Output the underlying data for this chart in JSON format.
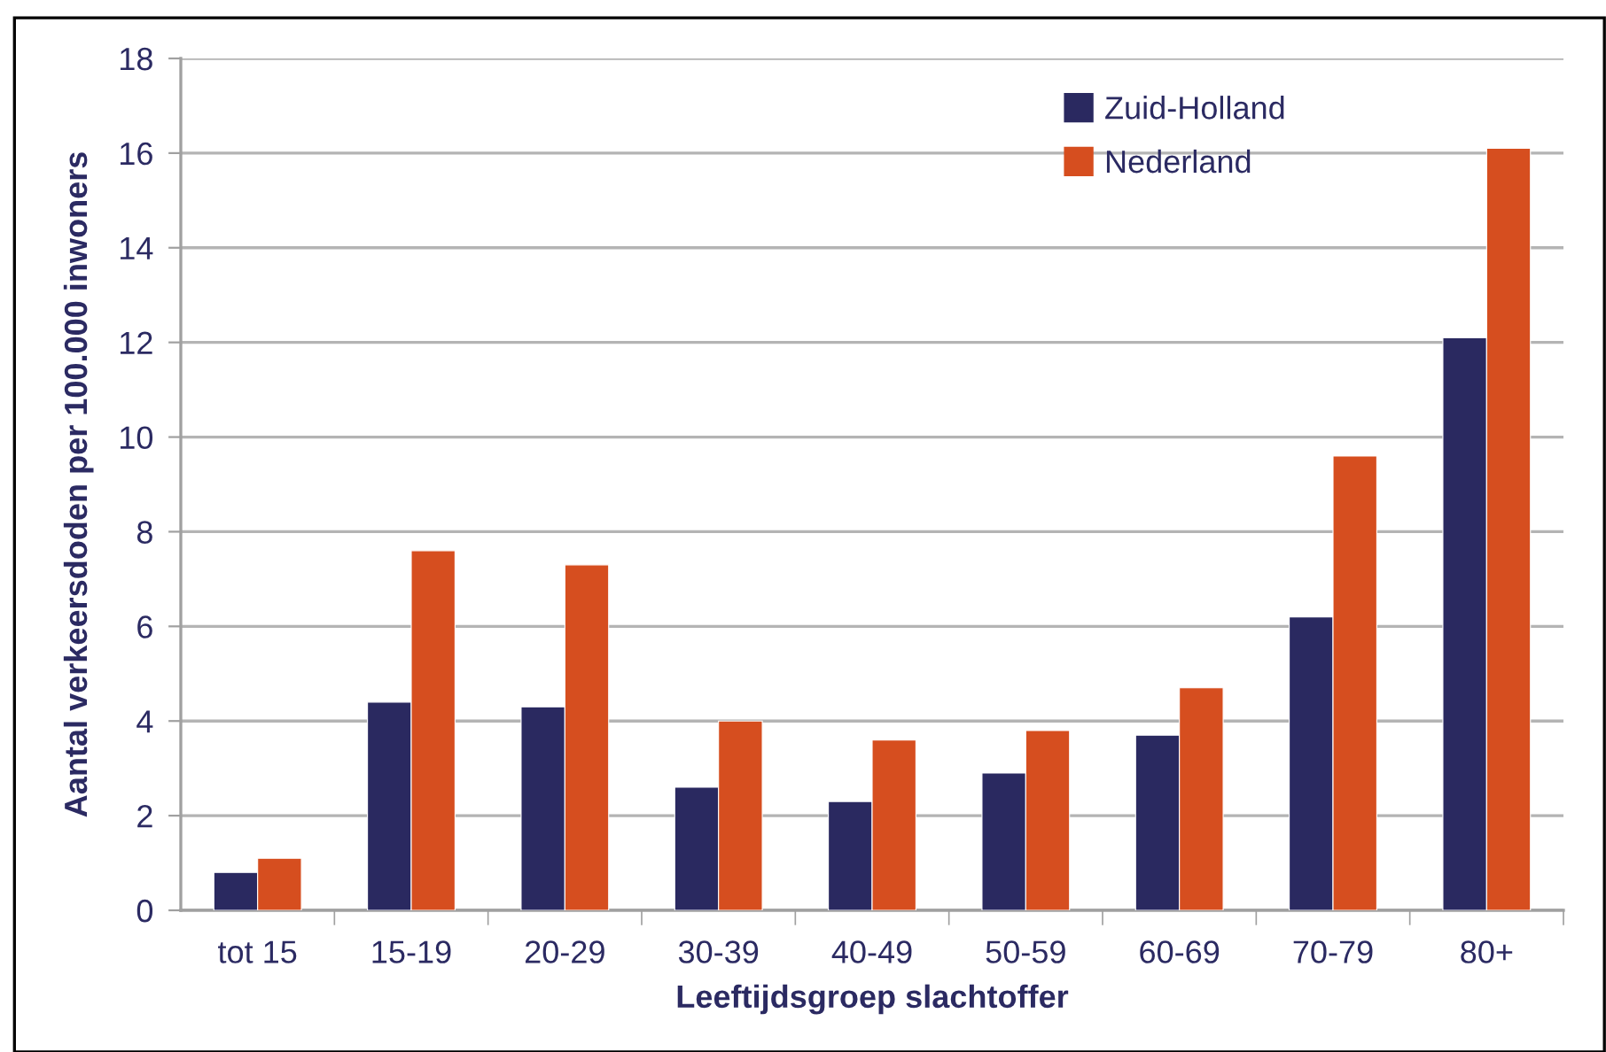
{
  "chart_data": {
    "type": "bar",
    "xlabel": "Leeftijdsgroep slachtoffer",
    "ylabel": "Aantal verkeersdoden per 100.000 inwoners",
    "categories": [
      "tot 15",
      "15-19",
      "20-29",
      "30-39",
      "40-49",
      "50-59",
      "60-69",
      "70-79",
      "80+"
    ],
    "series": [
      {
        "name": "Zuid-Holland",
        "color": "#2a2960",
        "values": [
          0.8,
          4.4,
          4.3,
          2.6,
          2.3,
          2.9,
          3.7,
          6.2,
          12.1
        ]
      },
      {
        "name": "Nederland",
        "color": "#d64e1f",
        "values": [
          1.1,
          7.6,
          7.3,
          4.0,
          3.6,
          3.8,
          4.7,
          9.6,
          16.1
        ]
      }
    ],
    "ylim": [
      0,
      18
    ],
    "yticks": [
      0,
      2,
      4,
      6,
      8,
      10,
      12,
      14,
      16,
      18
    ],
    "grid": "y",
    "legend": "top right"
  }
}
